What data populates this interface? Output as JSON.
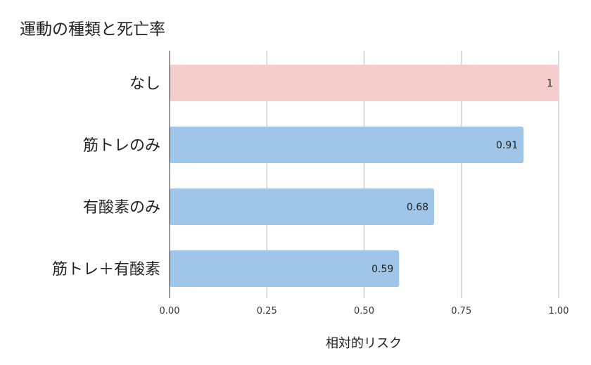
{
  "chart_data": {
    "type": "bar",
    "orientation": "horizontal",
    "title": "運動の種類と死亡率",
    "categories": [
      "なし",
      "筋トレのみ",
      "有酸素のみ",
      "筋トレ＋有酸素"
    ],
    "values": [
      1,
      0.91,
      0.68,
      0.59
    ],
    "data_labels": [
      "1",
      "0.91",
      "0.68",
      "0.59"
    ],
    "bar_colors": [
      "#f4cccc",
      "#9fc5e8",
      "#9fc5e8",
      "#9fc5e8"
    ],
    "xlabel": "相対的リスク",
    "ylabel": "",
    "xlim": [
      0,
      1
    ],
    "xticks": [
      0,
      0.25,
      0.5,
      0.75,
      1
    ],
    "xtick_labels": [
      "0.00",
      "0.25",
      "0.50",
      "0.75",
      "1.00"
    ],
    "grid": true,
    "legend": "none"
  }
}
